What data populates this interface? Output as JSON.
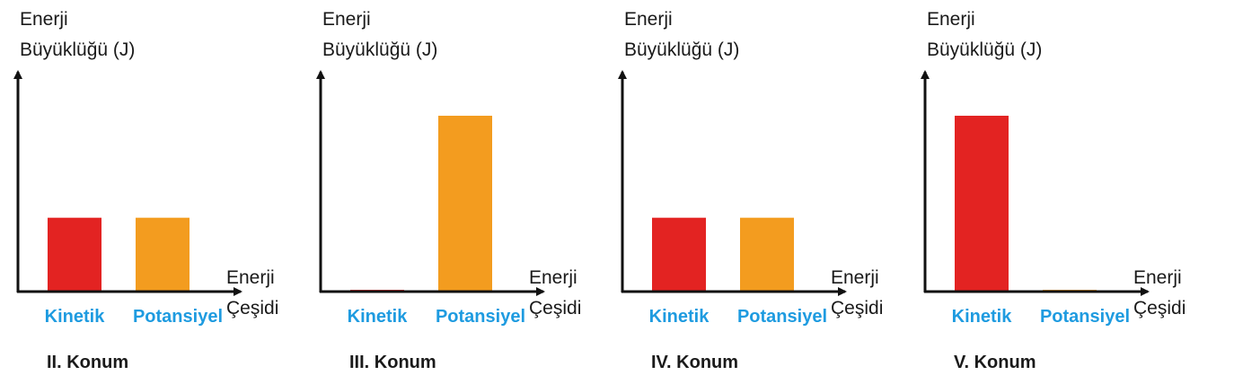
{
  "chart_data": [
    {
      "type": "bar",
      "title": "II. Konum",
      "y_label": [
        "Enerji",
        "Büyüklüğü (J)"
      ],
      "x_label": [
        "Enerji",
        "Çeşidi"
      ],
      "categories": [
        "Kinetik",
        "Potansiyel"
      ],
      "values": [
        42,
        42
      ],
      "colors": [
        "#e32322",
        "#f39c1f"
      ],
      "category_color": "#1e9be0",
      "ylim": [
        0,
        125
      ]
    },
    {
      "type": "bar",
      "title": "III. Konum",
      "y_label": [
        "Enerji",
        "Büyüklüğü (J)"
      ],
      "x_label": [
        "Enerji",
        "Çeşidi"
      ],
      "categories": [
        "Kinetik",
        "Potansiyel"
      ],
      "values": [
        1,
        100
      ],
      "colors": [
        "#e32322",
        "#f39c1f"
      ],
      "category_color": "#1e9be0",
      "ylim": [
        0,
        125
      ]
    },
    {
      "type": "bar",
      "title": "IV. Konum",
      "y_label": [
        "Enerji",
        "Büyüklüğü (J)"
      ],
      "x_label": [
        "Enerji",
        "Çeşidi"
      ],
      "categories": [
        "Kinetik",
        "Potansiyel"
      ],
      "values": [
        42,
        42
      ],
      "colors": [
        "#e32322",
        "#f39c1f"
      ],
      "category_color": "#1e9be0",
      "ylim": [
        0,
        125
      ]
    },
    {
      "type": "bar",
      "title": "V. Konum",
      "y_label": [
        "Enerji",
        "Büyüklüğü (J)"
      ],
      "x_label": [
        "Enerji",
        "Çeşidi"
      ],
      "categories": [
        "Kinetik",
        "Potansiyel"
      ],
      "values": [
        100,
        1
      ],
      "colors": [
        "#e32322",
        "#f39c1f"
      ],
      "category_color": "#1e9be0",
      "ylim": [
        0,
        125
      ]
    }
  ]
}
